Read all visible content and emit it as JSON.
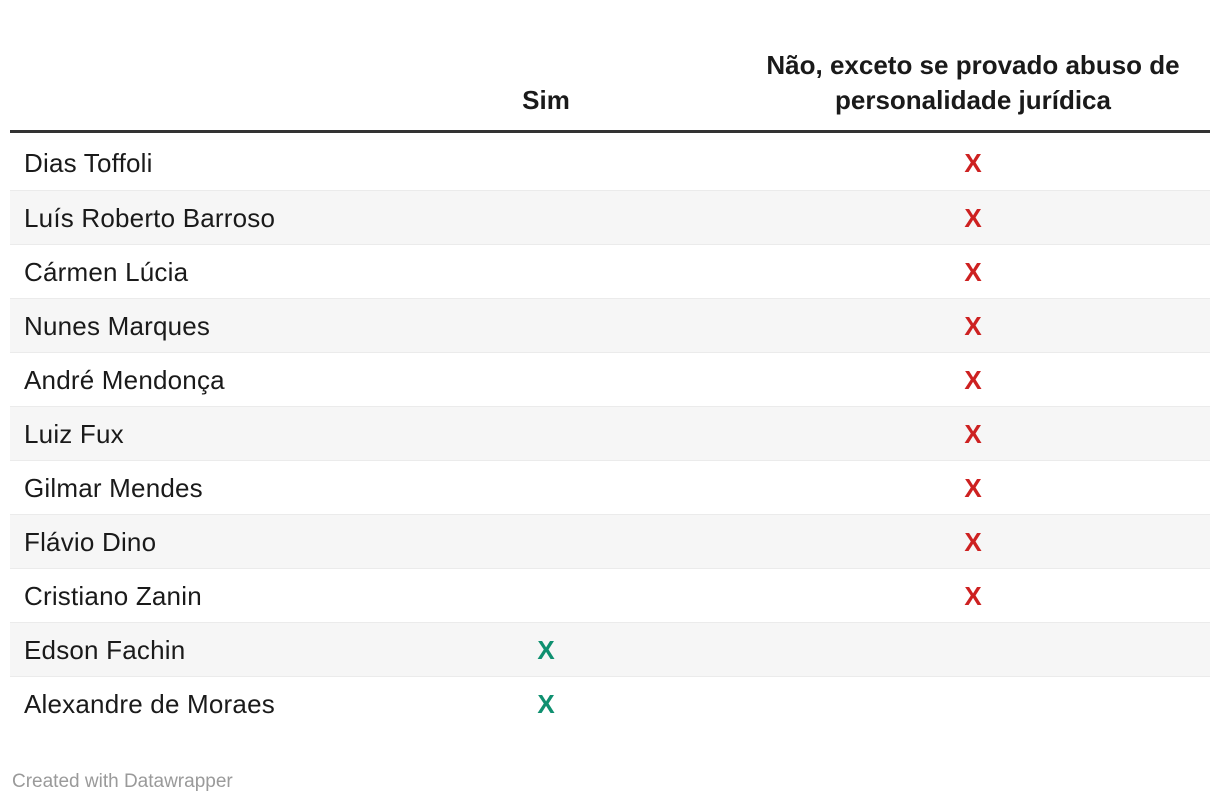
{
  "chart_data": {
    "type": "table",
    "title": "",
    "mark": "X",
    "columns": [
      {
        "label": "",
        "align": "left"
      },
      {
        "label": "Sim",
        "align": "center"
      },
      {
        "label": "Não, exceto se provado abuso de personalidade jurídica",
        "align": "center"
      }
    ],
    "rows": [
      {
        "name": "Dias Toffoli",
        "vote": "nao"
      },
      {
        "name": "Luís Roberto Barroso",
        "vote": "nao"
      },
      {
        "name": "Cármen Lúcia",
        "vote": "nao"
      },
      {
        "name": "Nunes Marques",
        "vote": "nao"
      },
      {
        "name": "André Mendonça",
        "vote": "nao"
      },
      {
        "name": "Luiz Fux",
        "vote": "nao"
      },
      {
        "name": "Gilmar Mendes",
        "vote": "nao"
      },
      {
        "name": "Flávio Dino",
        "vote": "nao"
      },
      {
        "name": "Cristiano Zanin",
        "vote": "nao"
      },
      {
        "name": "Edson Fachin",
        "vote": "sim"
      },
      {
        "name": "Alexandre de Moraes",
        "vote": "sim"
      }
    ],
    "legend_position": "none",
    "grid": "zebra-stripes"
  },
  "footer": {
    "credit": "Created with Datawrapper"
  },
  "colors": {
    "sim_mark": "#0f9070",
    "nao_mark": "#cd2121",
    "stripe": "#f6f6f6",
    "row_border": "#ebebeb",
    "header_rule": "#333333",
    "text": "#1a1a1a",
    "footer_text": "#9a9a9a"
  }
}
